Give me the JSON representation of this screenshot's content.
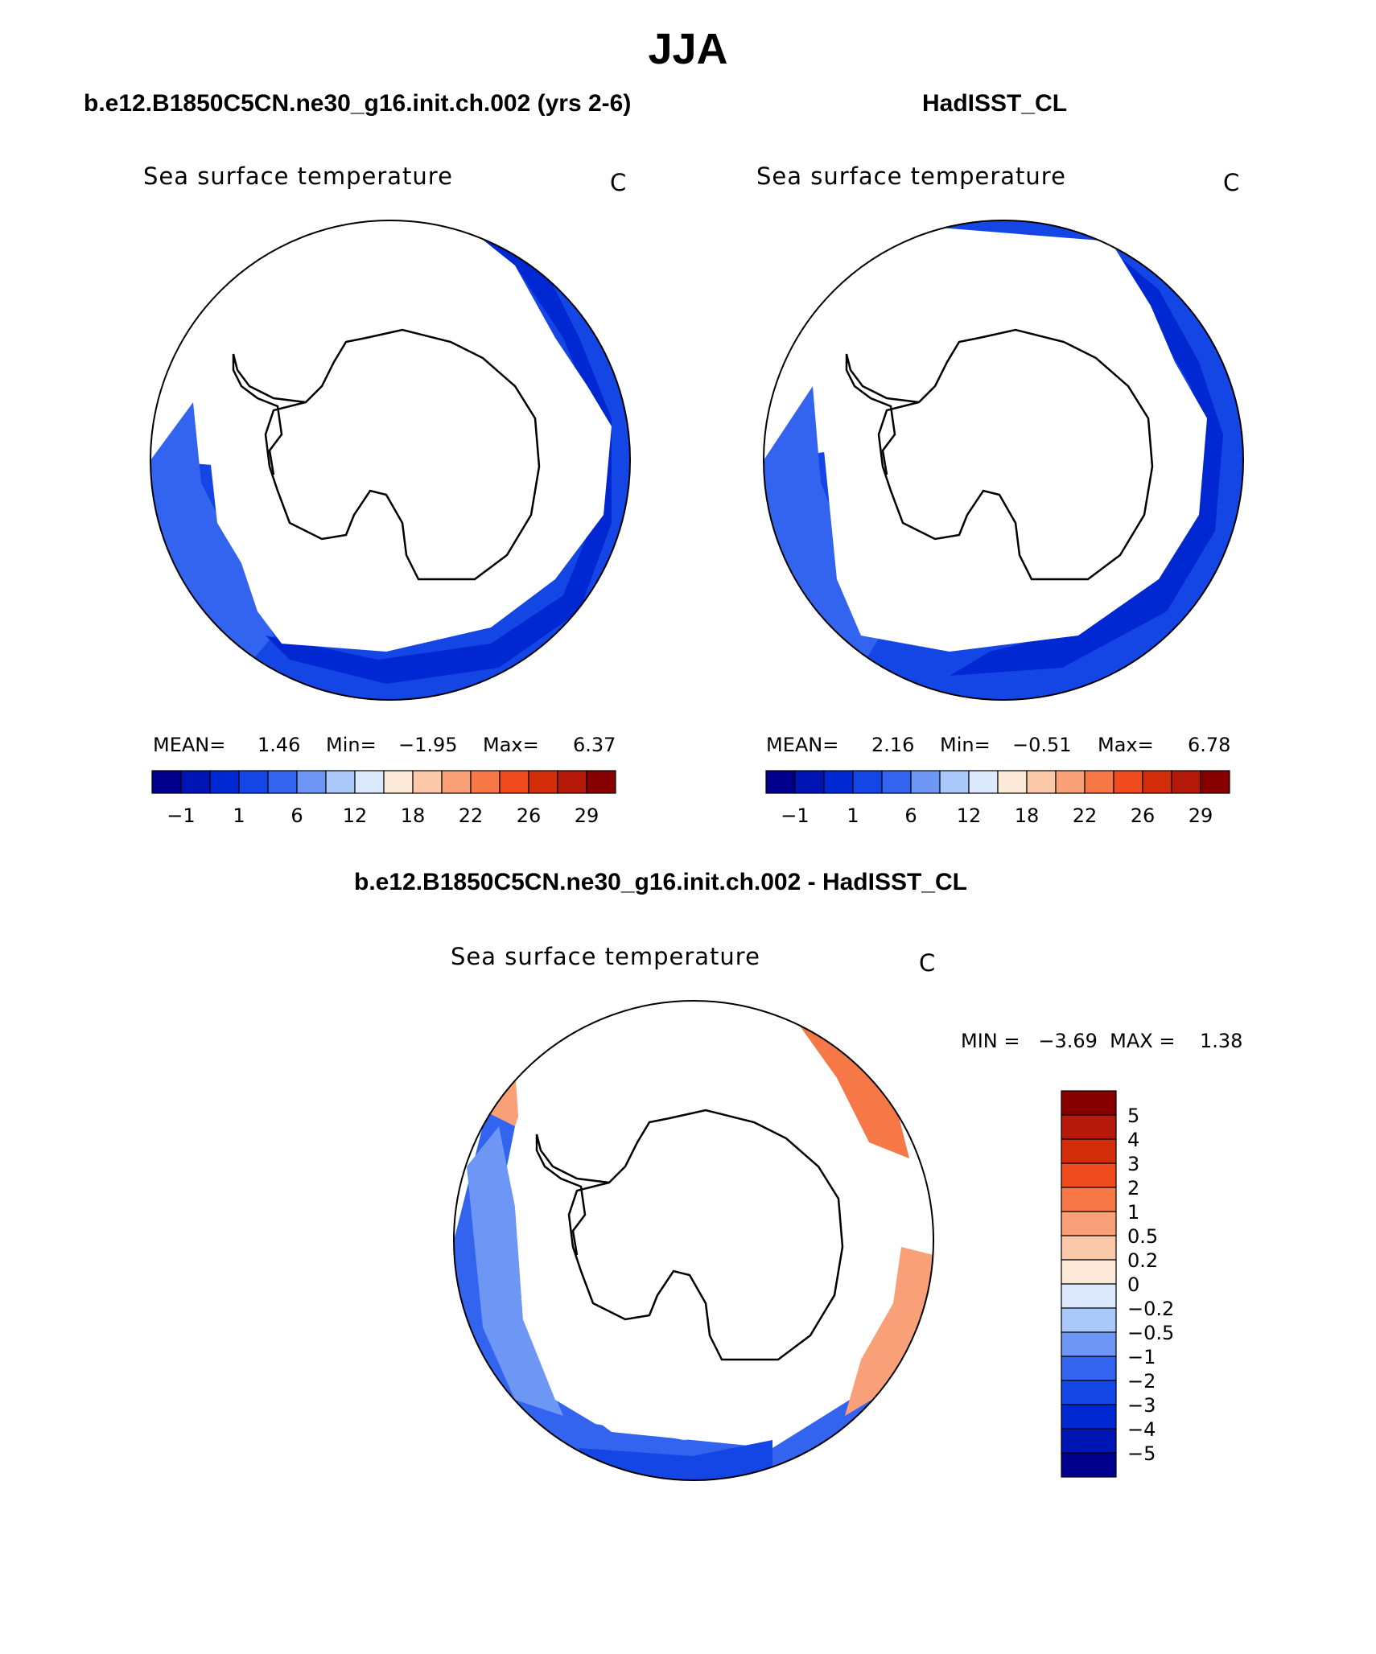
{
  "page": {
    "title": "JJA"
  },
  "panels": [
    {
      "case_title": "b.e12.B1850C5CN.ne30_g16.init.ch.002 (yrs 2-6)",
      "variable": "Sea surface temperature",
      "units": "C",
      "mean_label": "MEAN=",
      "mean": "1.46",
      "min_label": "Min=",
      "min": "−1.95",
      "max_label": "Max=",
      "max": "6.37"
    },
    {
      "case_title": "HadISST_CL",
      "variable": "Sea surface temperature",
      "units": "C",
      "mean_label": "MEAN=",
      "mean": "2.16",
      "min_label": "Min=",
      "min": "−0.51",
      "max_label": "Max=",
      "max": "6.78"
    }
  ],
  "diff_panel": {
    "case_title": "b.e12.B1850C5CN.ne30_g16.init.ch.002 - HadISST_CL",
    "variable": "Sea surface temperature",
    "units": "C",
    "range_text": "MIN =   −3.69  MAX =    1.38"
  },
  "colorbar_top": {
    "colors": [
      "#00008c",
      "#0016b4",
      "#0028d2",
      "#1446e6",
      "#3264f0",
      "#6e96f5",
      "#aac8fa",
      "#dce9fc",
      "#fde9d8",
      "#fcc8aa",
      "#faa078",
      "#f57846",
      "#f04b1e",
      "#d22d0a",
      "#b4190a",
      "#870000"
    ],
    "tick_labels": [
      "−1",
      "1",
      "6",
      "12",
      "18",
      "22",
      "26",
      "29"
    ]
  },
  "colorbar_diff": {
    "colors_top_to_bottom": [
      "#870000",
      "#b4190a",
      "#d22d0a",
      "#f04b1e",
      "#f57846",
      "#faa078",
      "#fcc8aa",
      "#fde9d8",
      "#dce9fc",
      "#aac8fa",
      "#6e96f5",
      "#3264f0",
      "#1446e6",
      "#0028d2",
      "#0016b4",
      "#00008c"
    ],
    "tick_labels": [
      "5",
      "4",
      "3",
      "2",
      "1",
      "0.5",
      "0.2",
      "0",
      "−0.2",
      "−0.5",
      "−1",
      "−2",
      "−3",
      "−4",
      "−5"
    ]
  }
}
